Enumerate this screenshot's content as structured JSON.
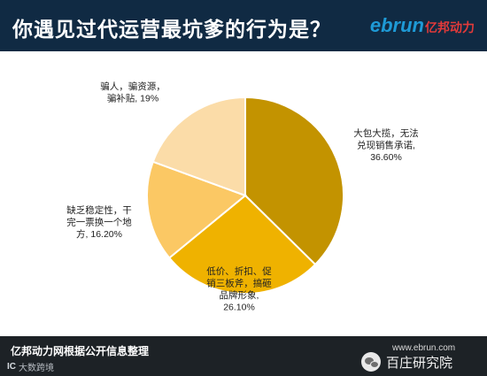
{
  "header": {
    "title": "你遇见过代运营最坑爹的行为是？",
    "logo_latin": "ebrun",
    "logo_cn": "亿邦动力"
  },
  "chart_data": {
    "type": "pie",
    "title": "你遇见过代运营最坑爹的行为是？",
    "start_angle_deg": 0,
    "direction": "clockwise",
    "slices": [
      {
        "label_lines": [
          "大包大揽，无法",
          "兑现销售承诺,",
          "36.60%"
        ],
        "value": 36.6,
        "color": "#c39300"
      },
      {
        "label_lines": [
          "低价、折扣、促",
          "销三板斧，搞砸",
          "品牌形象,",
          "26.10%"
        ],
        "value": 26.1,
        "color": "#efb200"
      },
      {
        "label_lines": [
          "缺乏稳定性，干",
          "完一票换一个地",
          "方, 16.20%"
        ],
        "value": 16.2,
        "color": "#fbc864"
      },
      {
        "label_lines": [
          "骗人，骗资源，",
          "骗补贴, 19%"
        ],
        "value": 19.0,
        "color": "#fbdca8"
      }
    ]
  },
  "footer": {
    "source": "亿邦动力网根据公开信息整理",
    "brand_mark": "IC",
    "brand_text": "大数跨境",
    "wm_url": "www.ebrun.com",
    "wm_channel": "百庄研究院"
  }
}
